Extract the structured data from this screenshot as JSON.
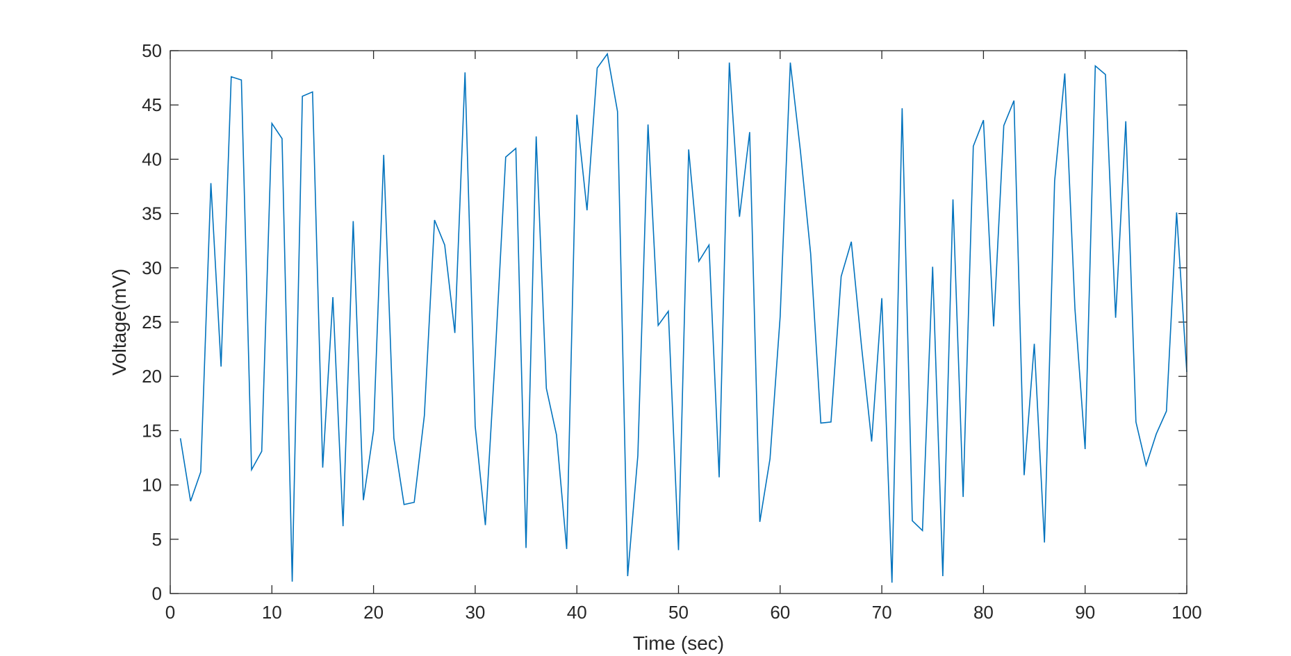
{
  "chart_data": {
    "type": "line",
    "title": "",
    "xlabel": "Time (sec)",
    "ylabel": "Voltage(mV)",
    "xlim": [
      0,
      100
    ],
    "ylim": [
      0,
      50
    ],
    "xticks": [
      0,
      10,
      20,
      30,
      40,
      50,
      60,
      70,
      80,
      90,
      100
    ],
    "yticks": [
      0,
      5,
      10,
      15,
      20,
      25,
      30,
      35,
      40,
      45,
      50
    ],
    "grid": false,
    "legend": "none",
    "color": "#0072bd",
    "x": [
      1,
      2,
      3,
      4,
      5,
      6,
      7,
      8,
      9,
      10,
      11,
      12,
      13,
      14,
      15,
      16,
      17,
      18,
      19,
      20,
      21,
      22,
      23,
      24,
      25,
      26,
      27,
      28,
      29,
      30,
      31,
      32,
      33,
      34,
      35,
      36,
      37,
      38,
      39,
      40,
      41,
      42,
      43,
      44,
      45,
      46,
      47,
      48,
      49,
      50,
      51,
      52,
      53,
      54,
      55,
      56,
      57,
      58,
      59,
      60,
      61,
      62,
      63,
      64,
      65,
      66,
      67,
      68,
      69,
      70,
      71,
      72,
      73,
      74,
      75,
      76,
      77,
      78,
      79,
      80,
      81,
      82,
      83,
      84,
      85,
      86,
      87,
      88,
      89,
      90,
      91,
      92,
      93,
      94,
      95,
      96,
      97,
      98,
      99,
      100
    ],
    "values": [
      14.3,
      8.5,
      11.2,
      37.8,
      20.9,
      47.6,
      47.3,
      11.4,
      13.1,
      43.3,
      41.9,
      1.1,
      45.8,
      46.2,
      11.6,
      27.3,
      6.2,
      34.3,
      8.6,
      15.0,
      40.4,
      14.3,
      8.2,
      8.4,
      16.4,
      34.4,
      32.1,
      24.0,
      48.0,
      15.4,
      6.3,
      22.4,
      40.2,
      41.0,
      4.2,
      42.1,
      18.9,
      14.6,
      4.1,
      44.1,
      35.3,
      48.4,
      49.7,
      44.4,
      1.6,
      12.7,
      43.2,
      24.7,
      26.0,
      4.0,
      40.9,
      30.6,
      32.1,
      10.7,
      48.9,
      34.7,
      42.5,
      6.6,
      12.4,
      25.5,
      48.9,
      40.7,
      31.3,
      15.7,
      15.8,
      29.2,
      32.4,
      22.8,
      14.0,
      27.2,
      1.0,
      44.7,
      6.7,
      5.8,
      30.1,
      1.6,
      36.3,
      8.9,
      41.2,
      43.6,
      24.6,
      43.1,
      45.4,
      10.9,
      23.0,
      4.7,
      38.0,
      47.9,
      26.2,
      13.3,
      48.6,
      47.8,
      25.4,
      43.5,
      15.8,
      11.8,
      14.7,
      16.8,
      35.1,
      20.4
    ]
  }
}
